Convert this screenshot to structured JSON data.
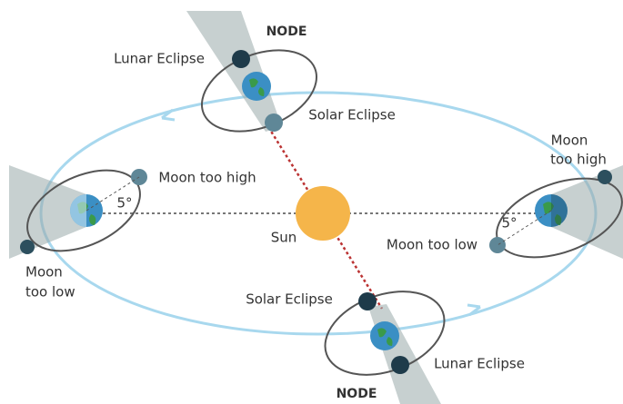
{
  "top": {
    "node": "NODE",
    "lunar_eclipse": "Lunar Eclipse",
    "solar_eclipse": "Solar Eclipse"
  },
  "left": {
    "moon_too_high": "Moon too high",
    "angle": "5°",
    "moon_too_low": [
      "Moon",
      "too low"
    ]
  },
  "sun": "Sun",
  "right": {
    "moon_too_high": [
      "Moon",
      "too high"
    ],
    "angle": "5°",
    "moon_too_low": "Moon too low"
  },
  "bottom": {
    "solar_eclipse": "Solar Eclipse",
    "lunar_eclipse": "Lunar Eclipse",
    "node": "NODE"
  }
}
